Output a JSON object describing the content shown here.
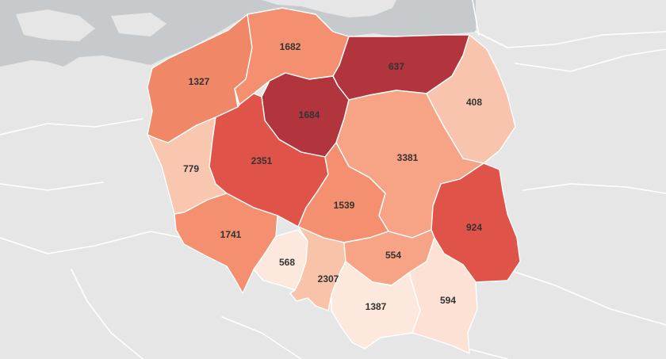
{
  "map": {
    "colors": {
      "land": "#e6e6e6",
      "sea": "#c6cacc",
      "borders": "#ffffff",
      "label": "#333333"
    },
    "regions": [
      {
        "id": "zachodniopomorskie",
        "value": "1327",
        "color": "#f08767"
      },
      {
        "id": "pomorskie",
        "value": "1682",
        "color": "#f4906f"
      },
      {
        "id": "warminsko-mazurskie",
        "value": "637",
        "color": "#b2353d"
      },
      {
        "id": "podlaskie",
        "value": "408",
        "color": "#f9c4ad"
      },
      {
        "id": "kujawsko-pomorskie",
        "value": "1684",
        "color": "#b2353d"
      },
      {
        "id": "lubuskie",
        "value": "779",
        "color": "#f9c6b0"
      },
      {
        "id": "wielkopolskie",
        "value": "2351",
        "color": "#df5349"
      },
      {
        "id": "mazowieckie",
        "value": "3381",
        "color": "#f7a385"
      },
      {
        "id": "lodzkie",
        "value": "1539",
        "color": "#f4906f"
      },
      {
        "id": "lubelskie",
        "value": "924",
        "color": "#df5349"
      },
      {
        "id": "dolnoslaskie",
        "value": "1741",
        "color": "#f4906f"
      },
      {
        "id": "opolskie",
        "value": "568",
        "color": "#fde8de"
      },
      {
        "id": "slaskie",
        "value": "2307",
        "color": "#f9c3aa"
      },
      {
        "id": "swietokrzyskie",
        "value": "554",
        "color": "#f7a385"
      },
      {
        "id": "malopolskie",
        "value": "1387",
        "color": "#fde8de"
      },
      {
        "id": "podkarpackie",
        "value": "594",
        "color": "#fde1d4"
      }
    ]
  }
}
